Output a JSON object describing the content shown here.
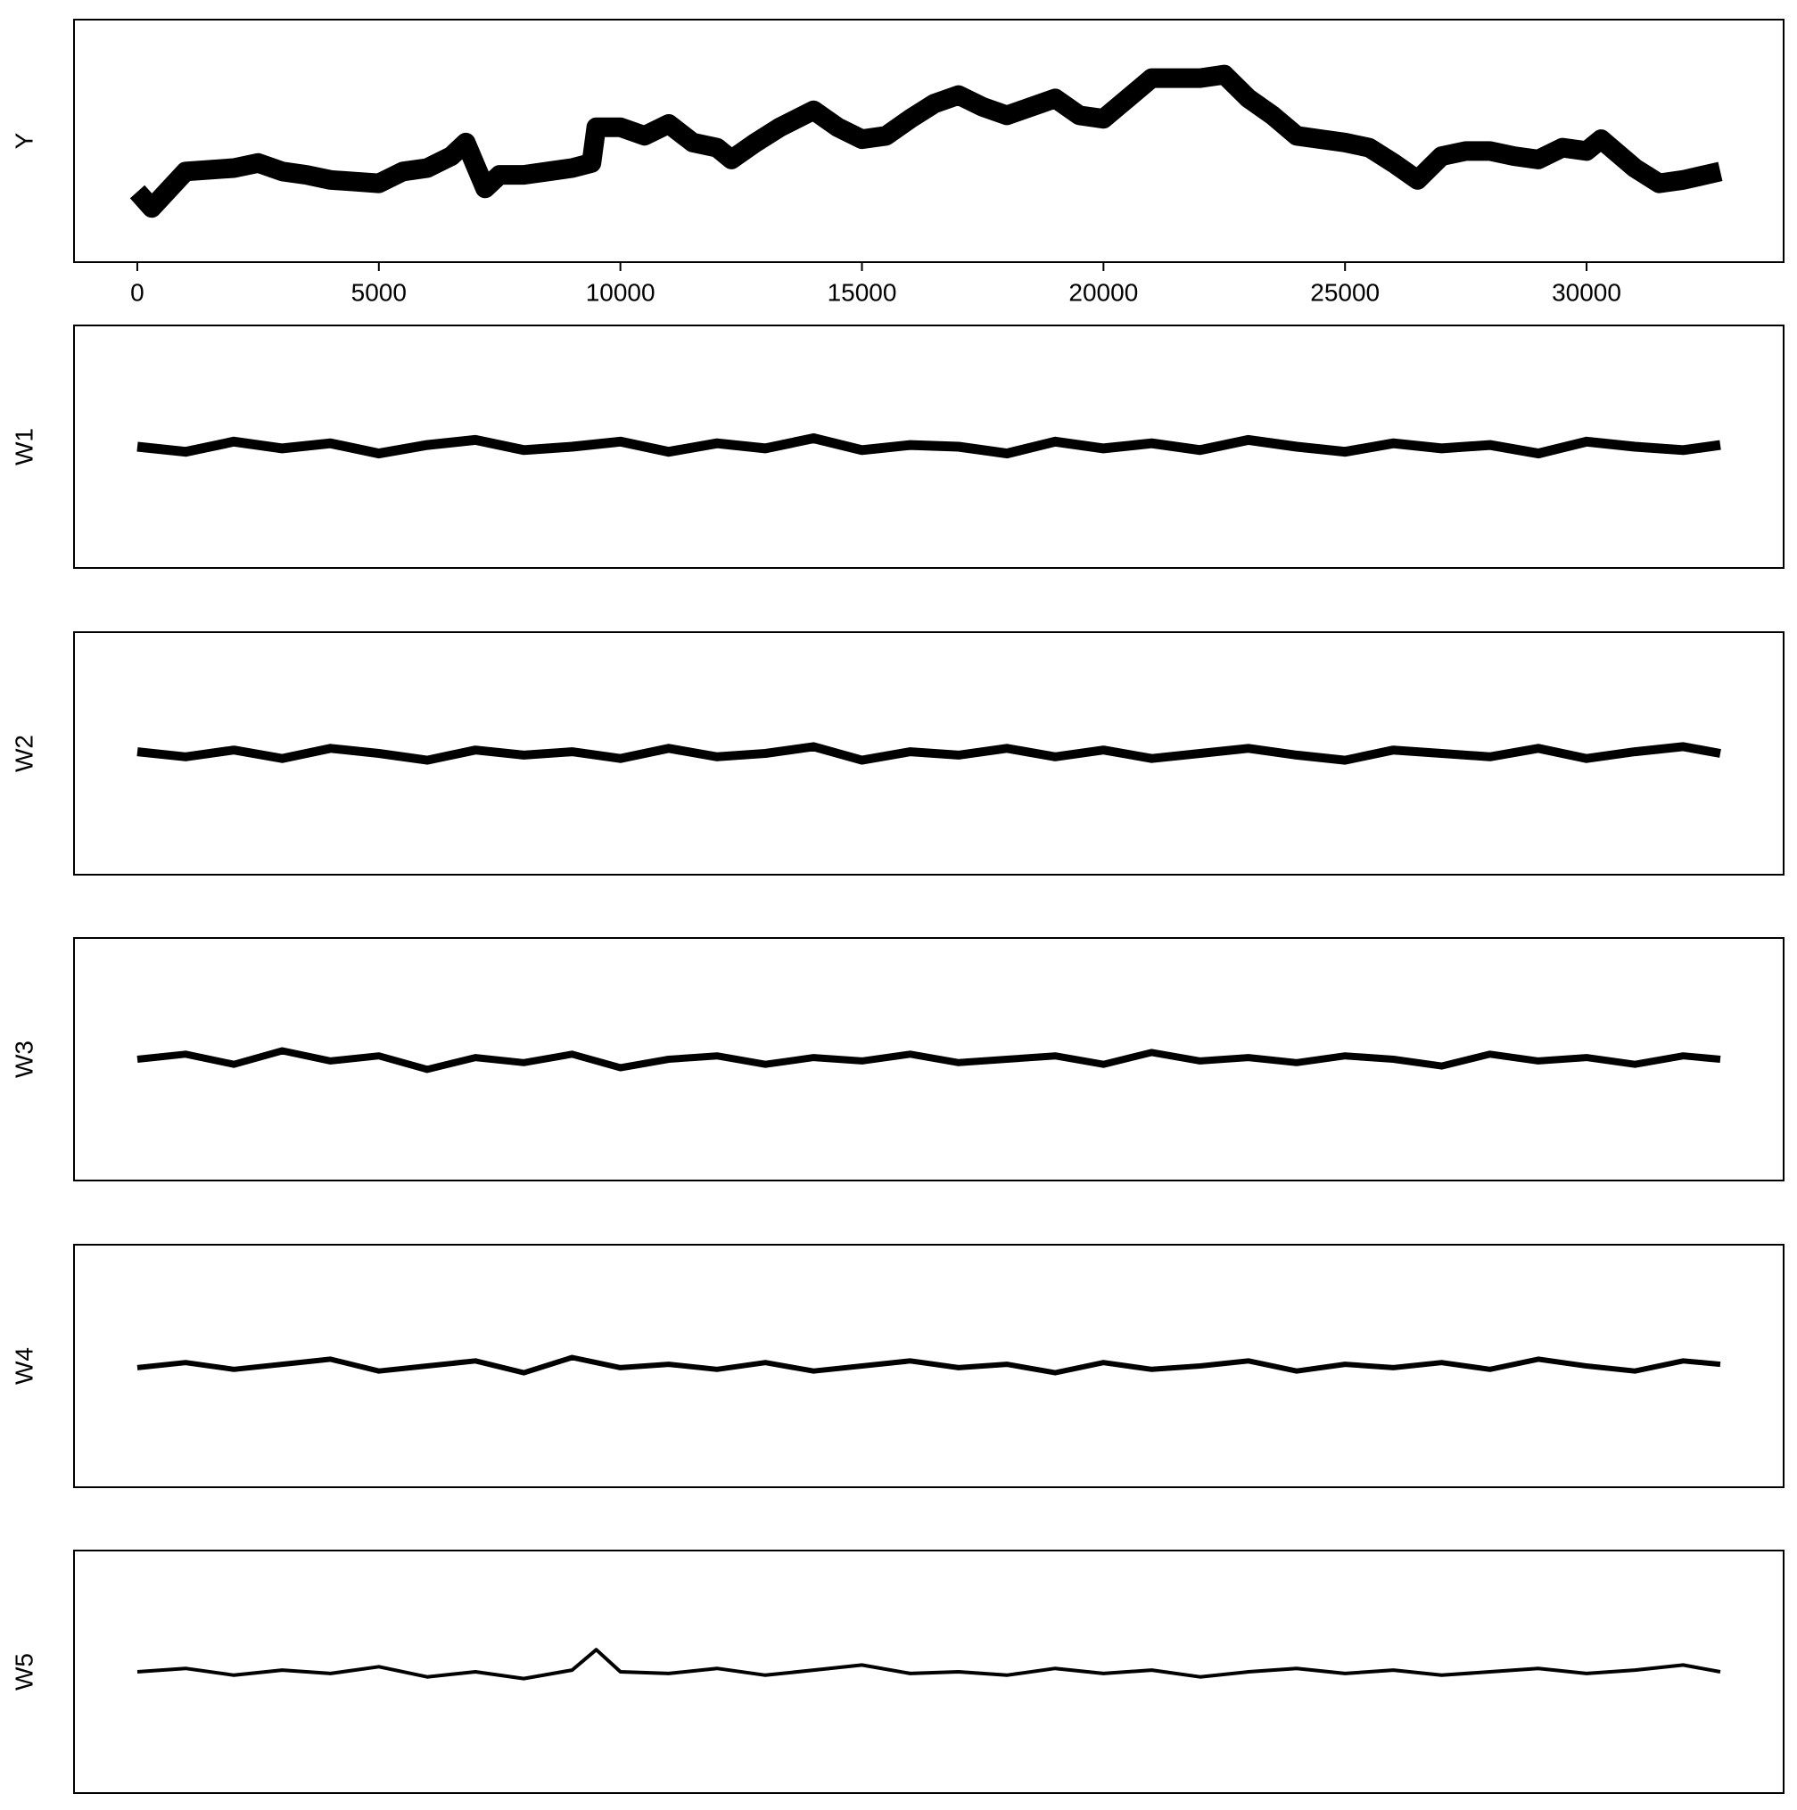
{
  "chart_data": [
    {
      "type": "line",
      "y_label": "Y",
      "color": "#000000",
      "x": [
        1,
        300,
        1000,
        2000,
        2500,
        3000,
        3500,
        4000,
        4500,
        5000,
        5500,
        6000,
        6500,
        6800,
        7200,
        7500,
        8000,
        8500,
        9000,
        9400,
        9500,
        10000,
        10500,
        11000,
        11500,
        12000,
        12300,
        12800,
        13300,
        14000,
        14500,
        15000,
        15500,
        16000,
        16500,
        17000,
        17500,
        18000,
        18500,
        19000,
        19500,
        20000,
        20500,
        21000,
        21500,
        22000,
        22500,
        23000,
        23500,
        24000,
        24500,
        25000,
        25500,
        26000,
        26500,
        27000,
        27500,
        28000,
        28500,
        29000,
        29500,
        30000,
        30300,
        31000,
        31500,
        32000,
        32768
      ],
      "values": [
        20,
        10.5,
        32,
        34,
        37,
        32,
        30,
        27,
        26,
        25,
        32,
        34,
        41,
        49,
        22,
        30,
        30,
        32,
        34,
        37,
        58,
        58,
        53,
        60,
        49,
        46,
        39,
        49,
        58,
        68,
        58,
        51,
        53,
        63,
        72,
        77,
        70,
        65,
        70,
        75,
        65,
        63,
        75,
        87,
        87,
        87,
        89,
        75,
        65,
        53,
        51,
        49,
        46,
        37,
        27,
        41,
        44,
        44,
        41,
        39,
        46,
        44,
        51,
        34,
        25,
        27,
        32
      ],
      "xlim": [
        -1310,
        34079
      ],
      "ylim": [
        0,
        100
      ],
      "xticks": [
        0,
        5000,
        10000,
        15000,
        20000,
        25000,
        30000
      ]
    },
    {
      "type": "line",
      "y_label": "W1",
      "color": "#000000",
      "x": [
        0,
        1000,
        2000,
        3000,
        4000,
        5000,
        6000,
        7000,
        8000,
        9000,
        10000,
        11000,
        12000,
        13000,
        14000,
        15000,
        16000,
        17000,
        18000,
        19000,
        20000,
        21000,
        22000,
        23000,
        24000,
        25000,
        26000,
        27000,
        28000,
        29000,
        30000,
        31000,
        32000,
        32768
      ],
      "values": [
        50,
        47,
        53,
        49,
        52,
        46,
        51,
        54,
        48,
        50,
        53,
        47,
        52,
        49,
        55,
        48,
        51,
        50,
        46,
        53,
        49,
        52,
        48,
        54,
        50,
        47,
        52,
        49,
        51,
        46,
        53,
        50,
        48,
        51
      ],
      "xlim": [
        -1310,
        34079
      ],
      "ylim": [
        0,
        100
      ]
    },
    {
      "type": "line",
      "y_label": "W2",
      "color": "#000000",
      "x": [
        0,
        1000,
        2000,
        3000,
        4000,
        5000,
        6000,
        7000,
        8000,
        9000,
        10000,
        11000,
        12000,
        13000,
        14000,
        15000,
        16000,
        17000,
        18000,
        19000,
        20000,
        21000,
        22000,
        23000,
        24000,
        25000,
        26000,
        27000,
        28000,
        29000,
        30000,
        31000,
        32000,
        32768
      ],
      "values": [
        51,
        48,
        52,
        47,
        53,
        50,
        46,
        52,
        49,
        51,
        47,
        53,
        48,
        50,
        54,
        46,
        51,
        49,
        53,
        48,
        52,
        47,
        50,
        53,
        49,
        46,
        52,
        50,
        48,
        53,
        47,
        51,
        54,
        50
      ],
      "xlim": [
        -1310,
        34079
      ],
      "ylim": [
        0,
        100
      ]
    },
    {
      "type": "line",
      "y_label": "W3",
      "color": "#000000",
      "x": [
        0,
        1000,
        2000,
        3000,
        4000,
        5000,
        6000,
        7000,
        8000,
        9000,
        10000,
        11000,
        12000,
        13000,
        14000,
        15000,
        16000,
        17000,
        18000,
        19000,
        20000,
        21000,
        22000,
        23000,
        24000,
        25000,
        26000,
        27000,
        28000,
        29000,
        30000,
        31000,
        32000,
        32768
      ],
      "values": [
        50,
        53,
        47,
        55,
        49,
        52,
        44,
        51,
        48,
        53,
        45,
        50,
        52,
        47,
        51,
        49,
        53,
        48,
        50,
        52,
        47,
        54,
        49,
        51,
        48,
        52,
        50,
        46,
        53,
        49,
        51,
        47,
        52,
        50
      ],
      "xlim": [
        -1310,
        34079
      ],
      "ylim": [
        0,
        100
      ]
    },
    {
      "type": "line",
      "y_label": "W4",
      "color": "#000000",
      "x": [
        0,
        1000,
        2000,
        3000,
        4000,
        5000,
        6000,
        7000,
        8000,
        9000,
        10000,
        11000,
        12000,
        13000,
        14000,
        15000,
        16000,
        17000,
        18000,
        19000,
        20000,
        21000,
        22000,
        23000,
        24000,
        25000,
        26000,
        27000,
        28000,
        29000,
        30000,
        31000,
        32000,
        32768
      ],
      "values": [
        49,
        52,
        48,
        51,
        54,
        47,
        50,
        53,
        46,
        55,
        49,
        51,
        48,
        52,
        47,
        50,
        53,
        49,
        51,
        46,
        52,
        48,
        50,
        53,
        47,
        51,
        49,
        52,
        48,
        54,
        50,
        47,
        53,
        51
      ],
      "xlim": [
        -1310,
        34079
      ],
      "ylim": [
        0,
        100
      ]
    },
    {
      "type": "line",
      "y_label": "W5",
      "color": "#000000",
      "x": [
        0,
        1000,
        2000,
        3000,
        4000,
        5000,
        6000,
        7000,
        8000,
        9000,
        9500,
        10000,
        11000,
        12000,
        13000,
        14000,
        15000,
        16000,
        17000,
        18000,
        19000,
        20000,
        21000,
        22000,
        23000,
        24000,
        25000,
        26000,
        27000,
        28000,
        29000,
        30000,
        31000,
        32000,
        32768
      ],
      "values": [
        50,
        52,
        48,
        51,
        49,
        53,
        47,
        50,
        46,
        51,
        63,
        50,
        49,
        52,
        48,
        51,
        54,
        49,
        50,
        48,
        52,
        49,
        51,
        47,
        50,
        52,
        49,
        51,
        48,
        50,
        52,
        49,
        51,
        54,
        50
      ],
      "xlim": [
        -1310,
        34079
      ],
      "ylim": [
        0,
        100
      ]
    }
  ]
}
